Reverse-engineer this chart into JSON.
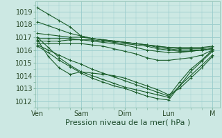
{
  "bg_color": "#cce8e3",
  "grid_color": "#99cccc",
  "line_color": "#1a5c2a",
  "xlabel": "Pression niveau de la mer( hPa )",
  "xlabel_fontsize": 8,
  "yticks": [
    1012,
    1013,
    1014,
    1015,
    1016,
    1017,
    1018,
    1019
  ],
  "xtick_labels": [
    "Ven",
    "Sam",
    "Dim",
    "Lun",
    "M"
  ],
  "xtick_positions": [
    0,
    24,
    48,
    72,
    96
  ],
  "ylim": [
    1011.5,
    1019.8
  ],
  "xlim": [
    -1,
    100
  ],
  "series_x": [
    [
      0,
      6,
      12,
      18,
      24,
      30,
      36,
      42,
      48,
      54,
      60,
      66,
      72,
      78,
      84,
      90,
      96
    ],
    [
      0,
      6,
      12,
      18,
      24,
      30,
      36,
      42,
      48,
      54,
      60,
      66,
      72,
      78,
      84,
      90,
      96
    ],
    [
      0,
      6,
      12,
      18,
      24,
      30,
      36,
      42,
      48,
      54,
      60,
      66,
      72,
      78,
      84,
      90,
      96
    ],
    [
      0,
      6,
      12,
      18,
      24,
      30,
      36,
      42,
      48,
      54,
      60,
      66,
      72,
      78,
      84,
      90,
      96
    ],
    [
      0,
      6,
      12,
      18,
      24,
      30,
      36,
      42,
      48,
      54,
      60,
      66,
      72,
      78,
      84,
      90,
      96
    ],
    [
      0,
      6,
      12,
      18,
      24,
      30,
      36,
      42,
      48,
      54,
      60,
      66,
      72,
      78,
      84,
      90,
      96
    ],
    [
      0,
      6,
      12,
      18,
      24,
      30,
      36,
      42,
      48,
      54,
      60,
      66,
      72,
      78,
      84,
      90,
      96
    ],
    [
      0,
      6,
      12,
      18,
      24,
      30,
      36,
      42,
      48,
      54,
      60,
      66,
      72,
      78,
      84,
      90,
      96
    ],
    [
      0,
      6,
      12,
      18,
      24,
      30,
      36,
      42,
      48,
      54,
      60,
      66,
      72,
      78,
      84,
      90,
      96
    ],
    [
      0,
      6,
      12,
      18,
      24,
      30,
      36,
      42,
      48,
      54,
      60,
      66,
      72,
      78,
      84,
      90,
      96
    ]
  ],
  "series_y": [
    [
      1019.3,
      1018.8,
      1018.3,
      1017.8,
      1017.1,
      1016.9,
      1016.8,
      1016.7,
      1016.6,
      1016.5,
      1016.4,
      1016.3,
      1016.2,
      1016.2,
      1016.2,
      1016.2,
      1016.3
    ],
    [
      1018.2,
      1017.9,
      1017.6,
      1017.3,
      1017.1,
      1016.9,
      1016.8,
      1016.7,
      1016.6,
      1016.5,
      1016.4,
      1016.3,
      1016.2,
      1016.1,
      1016.1,
      1016.1,
      1016.2
    ],
    [
      1017.3,
      1017.2,
      1017.1,
      1017.0,
      1017.0,
      1016.9,
      1016.8,
      1016.7,
      1016.6,
      1016.5,
      1016.4,
      1016.2,
      1016.1,
      1016.0,
      1016.0,
      1016.0,
      1016.1
    ],
    [
      1016.9,
      1016.9,
      1016.9,
      1016.9,
      1016.8,
      1016.8,
      1016.7,
      1016.6,
      1016.5,
      1016.4,
      1016.3,
      1016.1,
      1016.0,
      1015.9,
      1015.9,
      1016.0,
      1016.1
    ],
    [
      1016.7,
      1016.7,
      1016.7,
      1016.8,
      1016.8,
      1016.7,
      1016.6,
      1016.5,
      1016.4,
      1016.2,
      1016.0,
      1015.9,
      1015.8,
      1015.8,
      1015.9,
      1016.0,
      1016.1
    ],
    [
      1016.5,
      1016.5,
      1016.5,
      1016.5,
      1016.5,
      1016.4,
      1016.3,
      1016.1,
      1015.9,
      1015.7,
      1015.4,
      1015.2,
      1015.2,
      1015.3,
      1015.4,
      1015.6,
      1016.0
    ],
    [
      1016.4,
      1016.0,
      1015.6,
      1015.2,
      1014.9,
      1014.5,
      1014.2,
      1013.9,
      1013.6,
      1013.3,
      1013.0,
      1012.7,
      1012.4,
      1013.5,
      1014.5,
      1015.2,
      1016.0
    ],
    [
      1016.3,
      1015.8,
      1015.2,
      1014.7,
      1014.2,
      1013.8,
      1013.5,
      1013.2,
      1013.0,
      1012.7,
      1012.4,
      1012.2,
      1012.1,
      1013.2,
      1014.3,
      1015.1,
      1015.9
    ],
    [
      1016.8,
      1015.5,
      1014.6,
      1014.1,
      1014.3,
      1014.2,
      1014.1,
      1014.0,
      1013.8,
      1013.5,
      1013.2,
      1012.9,
      1012.5,
      1013.0,
      1013.8,
      1014.6,
      1015.5
    ],
    [
      1017.0,
      1016.2,
      1015.4,
      1014.8,
      1014.3,
      1014.0,
      1013.7,
      1013.4,
      1013.1,
      1012.9,
      1012.7,
      1012.5,
      1012.3,
      1013.2,
      1014.0,
      1014.8,
      1015.6
    ]
  ]
}
